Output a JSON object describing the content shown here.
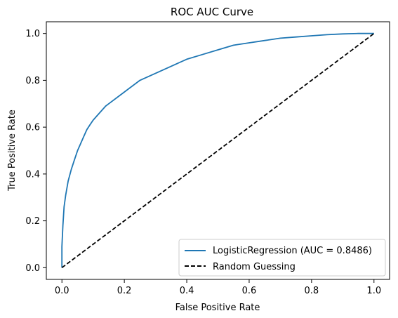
{
  "chart_data": {
    "type": "line",
    "title": "ROC AUC Curve",
    "xlabel": "False Positive Rate",
    "ylabel": "True Positive Rate",
    "xlim": [
      -0.05,
      1.05
    ],
    "ylim": [
      -0.05,
      1.05
    ],
    "xticks": [
      "0.0",
      "0.2",
      "0.4",
      "0.6",
      "0.8",
      "1.0"
    ],
    "yticks": [
      "0.0",
      "0.2",
      "0.4",
      "0.6",
      "0.8",
      "1.0"
    ],
    "grid": false,
    "legend_position": "bottom-right",
    "series": [
      {
        "name": "LogisticRegression (AUC = 0.8486)",
        "color": "#1f77b4",
        "style": "solid",
        "x": [
          0.0,
          0.0,
          0.003,
          0.007,
          0.012,
          0.02,
          0.03,
          0.04,
          0.05,
          0.06,
          0.07,
          0.08,
          0.09,
          0.1,
          0.12,
          0.14,
          0.15,
          0.2,
          0.25,
          0.3,
          0.35,
          0.4,
          0.45,
          0.5,
          0.55,
          0.6,
          0.65,
          0.7,
          0.75,
          0.8,
          0.85,
          0.9,
          0.95,
          1.0
        ],
        "y": [
          0.0,
          0.09,
          0.18,
          0.26,
          0.31,
          0.37,
          0.42,
          0.46,
          0.5,
          0.53,
          0.56,
          0.59,
          0.61,
          0.63,
          0.66,
          0.69,
          0.7,
          0.75,
          0.8,
          0.83,
          0.86,
          0.89,
          0.91,
          0.93,
          0.95,
          0.96,
          0.97,
          0.98,
          0.985,
          0.99,
          0.995,
          0.998,
          1.0,
          1.0
        ]
      },
      {
        "name": "Random Guessing",
        "color": "#000000",
        "style": "dashed",
        "x": [
          0.0,
          1.0
        ],
        "y": [
          0.0,
          1.0
        ]
      }
    ]
  }
}
